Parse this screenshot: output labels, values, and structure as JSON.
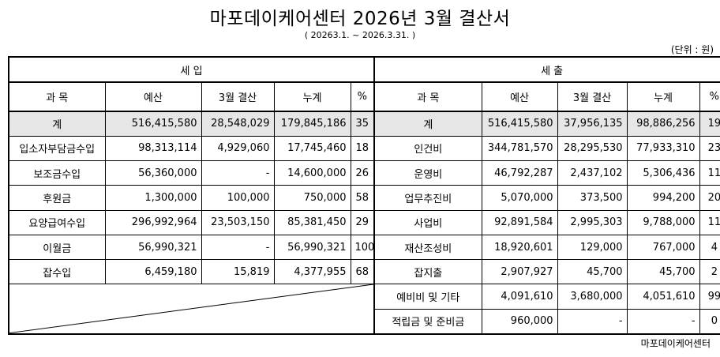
{
  "header": {
    "title": "마포데이케어센터 2026년 3월 결산서",
    "period": "( 20263.1. ~ 2026.3.31. )",
    "unit": "(단위 : 원)"
  },
  "footer": {
    "org": "마포데이케어센터"
  },
  "table": {
    "income_title": "세 입",
    "expense_title": "세 출",
    "columns": [
      "과 목",
      "예산",
      "3월 결산",
      "누계",
      "%"
    ],
    "income_total": {
      "name": "계",
      "budget": "516,415,580",
      "month": "28,548,029",
      "cumulative": "179,845,186",
      "pct": "35"
    },
    "expense_total": {
      "name": "계",
      "budget": "516,415,580",
      "month": "37,956,135",
      "cumulative": "98,886,256",
      "pct": "19"
    },
    "income": [
      {
        "name": "입소자부담금수입",
        "budget": "98,313,114",
        "month": "4,929,060",
        "cumulative": "17,745,460",
        "pct": "18"
      },
      {
        "name": "보조금수입",
        "budget": "56,360,000",
        "month": "-",
        "cumulative": "14,600,000",
        "pct": "26"
      },
      {
        "name": "후원금",
        "budget": "1,300,000",
        "month": "100,000",
        "cumulative": "750,000",
        "pct": "58"
      },
      {
        "name": "요양급여수입",
        "budget": "296,992,964",
        "month": "23,503,150",
        "cumulative": "85,381,450",
        "pct": "29"
      },
      {
        "name": "이월금",
        "budget": "56,990,321",
        "month": "-",
        "cumulative": "56,990,321",
        "pct": "100"
      },
      {
        "name": "잡수입",
        "budget": "6,459,180",
        "month": "15,819",
        "cumulative": "4,377,955",
        "pct": "68"
      }
    ],
    "expense": [
      {
        "name": "인건비",
        "budget": "344,781,570",
        "month": "28,295,530",
        "cumulative": "77,933,310",
        "pct": "23"
      },
      {
        "name": "운영비",
        "budget": "46,792,287",
        "month": "2,437,102",
        "cumulative": "5,306,436",
        "pct": "11"
      },
      {
        "name": "업무추진비",
        "budget": "5,070,000",
        "month": "373,500",
        "cumulative": "994,200",
        "pct": "20"
      },
      {
        "name": "사업비",
        "budget": "92,891,584",
        "month": "2,995,303",
        "cumulative": "9,788,000",
        "pct": "11"
      },
      {
        "name": "재산조성비",
        "budget": "18,920,601",
        "month": "129,000",
        "cumulative": "767,000",
        "pct": "4"
      },
      {
        "name": "잡지출",
        "budget": "2,907,927",
        "month": "45,700",
        "cumulative": "45,700",
        "pct": "2"
      },
      {
        "name": "예비비 및 기타",
        "budget": "4,091,610",
        "month": "3,680,000",
        "cumulative": "4,051,610",
        "pct": "99"
      },
      {
        "name": "적립금 및 준비금",
        "budget": "960,000",
        "month": "-",
        "cumulative": "-",
        "pct": "0"
      }
    ]
  }
}
